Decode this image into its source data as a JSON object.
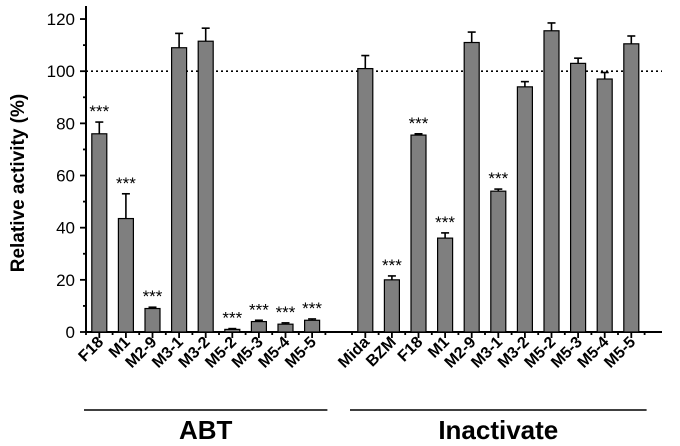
{
  "chart_data": {
    "type": "bar",
    "title": "",
    "xlabel": "",
    "ylabel": "Relative activity (%)",
    "ylim": [
      0,
      125
    ],
    "yticks": [
      0,
      20,
      40,
      60,
      80,
      100,
      120
    ],
    "reference_line": 100,
    "bar_color": "#7f7f7f",
    "groups": [
      {
        "name": "ABT",
        "categories": [
          "F18",
          "M1",
          "M2-9",
          "M3-1",
          "M3-2",
          "M5-2",
          "M5-3",
          "M5-4",
          "M5-5"
        ],
        "values": [
          76,
          43.5,
          9,
          109,
          111.5,
          1,
          4,
          3,
          4.5
        ],
        "errors": [
          4.5,
          9.5,
          0.5,
          5.5,
          5,
          0.3,
          0.5,
          0.5,
          0.5
        ],
        "significance": [
          "***",
          "***",
          "***",
          "",
          "",
          "***",
          "***",
          "***",
          "***"
        ]
      },
      {
        "name": "Inactivate",
        "categories": [
          "Mida",
          "BZM",
          "F18",
          "M1",
          "M2-9",
          "M3-1",
          "M3-2",
          "M5-2",
          "M5-3",
          "M5-4",
          "M5-5"
        ],
        "values": [
          101,
          20,
          75.5,
          36,
          111,
          54,
          94,
          115.5,
          103,
          97,
          110.5
        ],
        "errors": [
          5,
          1.5,
          0.5,
          2,
          4,
          0.8,
          2,
          3,
          2,
          2.5,
          3
        ],
        "significance": [
          "",
          "***",
          "***",
          "***",
          "",
          "***",
          "",
          "",
          "",
          "",
          ""
        ]
      }
    ]
  }
}
